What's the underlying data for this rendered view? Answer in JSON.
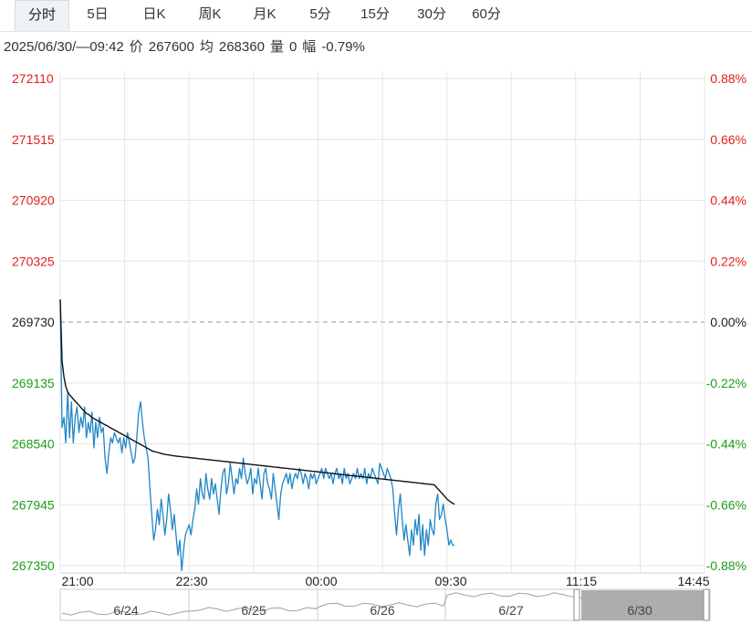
{
  "tabs": [
    {
      "label": "分时",
      "active": true
    },
    {
      "label": "5日"
    },
    {
      "label": "日K"
    },
    {
      "label": "周K"
    },
    {
      "label": "月K"
    },
    {
      "label": "5分"
    },
    {
      "label": "15分"
    },
    {
      "label": "30分"
    },
    {
      "label": "60分"
    }
  ],
  "info": {
    "datetime": "2025/06/30/—09:42",
    "price_label": "价",
    "price": "267600",
    "avg_label": "均",
    "avg": "268360",
    "vol_label": "量",
    "vol": "0",
    "chg_label": "幅",
    "chg": "-0.79%"
  },
  "colors": {
    "up": "#e0211c",
    "down": "#1a9e1a",
    "neutral": "#222222",
    "price_line": "#1f86c7",
    "avg_line": "#111111",
    "grid": "#e6e6e6"
  },
  "chart_data": {
    "type": "line",
    "base_price": 269730,
    "ylim": [
      267350,
      272110
    ],
    "y_ticks": [
      "272110",
      "271515",
      "270920",
      "270325",
      "269730",
      "269135",
      "268540",
      "267945",
      "267350"
    ],
    "pct_ticks": [
      "0.88%",
      "0.66%",
      "0.44%",
      "0.22%",
      "0.00%",
      "-0.22%",
      "-0.44%",
      "-0.66%",
      "-0.88%"
    ],
    "x_ticks": [
      "21:00",
      "22:30",
      "00:00",
      "09:30",
      "11:15",
      "14:45"
    ],
    "series": [
      {
        "values": [
          269950,
          268700,
          268800,
          268550,
          269050,
          268600,
          268950,
          268550,
          268800,
          268900,
          268650,
          268800,
          268700,
          268900,
          268600,
          268750,
          268650,
          268850,
          268500,
          268750,
          268600,
          268800,
          268650,
          268700,
          268400,
          268250,
          268450,
          268600,
          268550,
          268650,
          268600,
          268550,
          268600,
          268450,
          268600,
          268500,
          268650,
          268550,
          268450,
          268350,
          268400,
          268600,
          268850,
          268950,
          268750,
          268600,
          268500,
          268400,
          268100,
          267850,
          267600,
          267700,
          267900,
          267750,
          268000,
          267850,
          267650,
          267800,
          268050,
          267900,
          267700,
          267850,
          267650,
          267450,
          267600,
          267300,
          267500,
          267650,
          267700,
          267750,
          267650,
          267800,
          267900,
          268100,
          267950,
          268200,
          268050,
          268000,
          268250,
          268100,
          268000,
          268200,
          268050,
          268150,
          268000,
          267850,
          268100,
          268250,
          268300,
          268050,
          268150,
          268350,
          268200,
          268050,
          268200,
          268150,
          268300,
          268200,
          268400,
          268250,
          268150,
          268200,
          268300,
          268050,
          268200,
          268150,
          268300,
          268150,
          268000,
          268250,
          268300,
          268150,
          268100,
          268000,
          268250,
          268100,
          267950,
          267800,
          268050,
          268150,
          268200,
          268250,
          268150,
          268250,
          268100,
          268200,
          268250,
          268200,
          268300,
          268250,
          268150,
          268250,
          268200,
          268100,
          268250,
          268200,
          268250,
          268150,
          268200,
          268250,
          268300,
          268200,
          268300,
          268250,
          268200,
          268250,
          268150,
          268250,
          268300,
          268200,
          268250,
          268150,
          268300,
          268200,
          268250,
          268150,
          268200,
          268250,
          268200,
          268300,
          268200,
          268250,
          268200,
          268300,
          268150,
          268250,
          268200,
          268300,
          268250,
          268200,
          268150,
          268350,
          268300,
          268250,
          268200,
          268300,
          268250,
          268200,
          268100,
          267850,
          267650,
          267900,
          268050,
          267800,
          267600,
          267750,
          267600,
          267450,
          267700,
          267550,
          267800,
          267650,
          267850,
          267500,
          267750,
          267450,
          267700,
          267550,
          267800,
          267700,
          267650,
          267950,
          268050,
          267800,
          267850,
          267950,
          267800,
          267700,
          267550,
          267600,
          267550,
          267550
        ],
        "line": "price"
      },
      {
        "values": [
          269950,
          269350,
          269200,
          269100,
          269050,
          269020,
          269000,
          268980,
          268960,
          268940,
          268920,
          268900,
          268880,
          268860,
          268840,
          268830,
          268820,
          268800,
          268790,
          268780,
          268770,
          268760,
          268750,
          268740,
          268730,
          268720,
          268710,
          268700,
          268690,
          268680,
          268670,
          268660,
          268650,
          268640,
          268630,
          268620,
          268610,
          268600,
          268590,
          268580,
          268570,
          268560,
          268550,
          268540,
          268530,
          268520,
          268510,
          268500,
          268490,
          268480,
          268470,
          268465,
          268460,
          268455,
          268450,
          268445,
          268440,
          268437,
          268434,
          268431,
          268428,
          268425,
          268422,
          268420,
          268418,
          268416,
          268414,
          268412,
          268410,
          268408,
          268406,
          268404,
          268402,
          268400,
          268398,
          268396,
          268394,
          268392,
          268390,
          268388,
          268386,
          268384,
          268382,
          268380,
          268378,
          268376,
          268374,
          268372,
          268370,
          268368,
          268366,
          268364,
          268362,
          268360,
          268358,
          268356,
          268354,
          268352,
          268350,
          268348,
          268346,
          268344,
          268342,
          268340,
          268338,
          268336,
          268334,
          268332,
          268330,
          268328,
          268326,
          268324,
          268322,
          268320,
          268318,
          268316,
          268314,
          268312,
          268310,
          268308,
          268306,
          268304,
          268302,
          268300,
          268298,
          268296,
          268294,
          268292,
          268290,
          268288,
          268286,
          268284,
          268282,
          268280,
          268278,
          268276,
          268274,
          268272,
          268270,
          268268,
          268266,
          268264,
          268262,
          268260,
          268258,
          268256,
          268254,
          268252,
          268250,
          268248,
          268246,
          268244,
          268242,
          268240,
          268238,
          268236,
          268234,
          268232,
          268230,
          268228,
          268226,
          268224,
          268222,
          268220,
          268218,
          268216,
          268214,
          268212,
          268210,
          268208,
          268206,
          268204,
          268202,
          268200,
          268198,
          268196,
          268194,
          268192,
          268190,
          268188,
          268186,
          268184,
          268182,
          268180,
          268178,
          268176,
          268174,
          268172,
          268170,
          268168,
          268166,
          268164,
          268162,
          268160,
          268158,
          268156,
          268154,
          268152,
          268150,
          268148,
          268146,
          268144,
          268142,
          268140,
          268120,
          268100,
          268080,
          268060,
          268040,
          268020,
          268000,
          267985,
          267970,
          267960,
          267950
        ],
        "line": "avg"
      }
    ]
  },
  "navigator": {
    "labels": [
      "6/24",
      "6/25",
      "6/26",
      "6/27",
      "6/30"
    ]
  }
}
